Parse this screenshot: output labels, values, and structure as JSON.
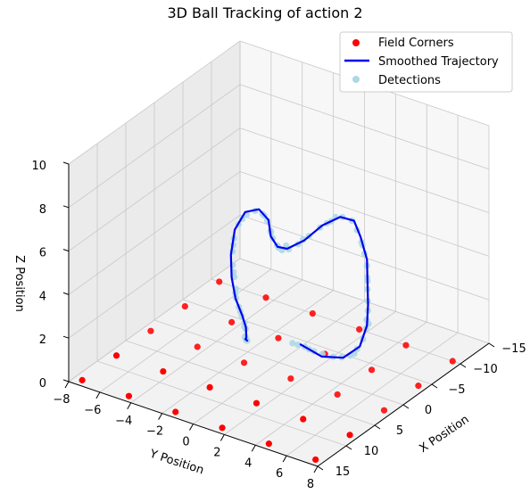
{
  "chart_data": {
    "type": "scatter",
    "title": "3D Ball Tracking of action 2",
    "xlabel": "X Position",
    "ylabel": "Y Position",
    "zlabel": "Z Position",
    "xlim": [
      -15,
      15
    ],
    "ylim": [
      -8,
      8
    ],
    "zlim": [
      0,
      10
    ],
    "x_ticks": [
      "15",
      "10",
      "5",
      "0",
      "−5",
      "−10",
      "−15"
    ],
    "y_ticks": [
      "−8",
      "−6",
      "−4",
      "−2",
      "0",
      "2",
      "4",
      "6",
      "8"
    ],
    "z_ticks": [
      "0",
      "2",
      "4",
      "6",
      "8",
      "10"
    ],
    "grid": true,
    "legend_position": "top-right",
    "legend": [
      "Field Corners",
      "Smoothed Trajectory",
      "Detections"
    ],
    "colors": {
      "field_corners": "#ff0000",
      "trajectory": "#0000ee",
      "detections": "#add8e6"
    },
    "series": [
      {
        "name": "Field Corners",
        "kind": "scatter",
        "points": [
          [
            14,
            -7.5,
            0
          ],
          [
            8,
            -7.5,
            0
          ],
          [
            2,
            -7.5,
            0
          ],
          [
            -4,
            -7.5,
            0
          ],
          [
            -10,
            -7.5,
            0
          ],
          [
            14,
            -4.5,
            0
          ],
          [
            8,
            -4.5,
            0
          ],
          [
            2,
            -4.5,
            0
          ],
          [
            -4,
            -4.5,
            0
          ],
          [
            -10,
            -4.5,
            0
          ],
          [
            14,
            -1.5,
            0
          ],
          [
            8,
            -1.5,
            0
          ],
          [
            2,
            -1.5,
            0
          ],
          [
            -4,
            -1.5,
            0
          ],
          [
            -10,
            -1.5,
            0
          ],
          [
            14,
            1.5,
            0
          ],
          [
            8,
            1.5,
            0
          ],
          [
            2,
            1.5,
            0
          ],
          [
            -4,
            1.5,
            0
          ],
          [
            -10,
            1.5,
            0
          ],
          [
            14,
            4.5,
            0
          ],
          [
            8,
            4.5,
            0
          ],
          [
            2,
            4.5,
            0
          ],
          [
            -4,
            4.5,
            0
          ],
          [
            -10,
            4.5,
            0
          ],
          [
            14,
            7.5,
            0
          ],
          [
            8,
            7.5,
            0
          ],
          [
            2,
            7.5,
            0
          ],
          [
            -4,
            7.5,
            0
          ],
          [
            -10,
            7.5,
            0
          ]
        ]
      },
      {
        "name": "Smoothed Trajectory",
        "kind": "line",
        "points": [
          [
            3,
            2.5,
            2.0
          ],
          [
            2,
            3.5,
            1.5
          ],
          [
            1,
            4.5,
            1.5
          ],
          [
            0,
            5.2,
            2.0
          ],
          [
            -1,
            5.3,
            2.8
          ],
          [
            -2,
            5.0,
            3.5
          ],
          [
            -3,
            4.6,
            4.2
          ],
          [
            -4,
            4.2,
            5.0
          ],
          [
            -4.5,
            3.6,
            5.8
          ],
          [
            -5,
            3.0,
            6.3
          ],
          [
            -4.5,
            2.3,
            6.4
          ],
          [
            -3.5,
            1.5,
            6.0
          ],
          [
            -2.5,
            0.7,
            5.3
          ],
          [
            -2,
            -0.2,
            4.8
          ],
          [
            -2.5,
            -1.0,
            4.6
          ],
          [
            -3.5,
            -1.8,
            4.7
          ],
          [
            -5,
            -2.5,
            5.0
          ],
          [
            -5.5,
            -3.3,
            5.2
          ],
          [
            -5,
            -4.0,
            5.0
          ],
          [
            -4,
            -4.3,
            4.3
          ],
          [
            -2.5,
            -4.0,
            3.5
          ],
          [
            -1,
            -3.4,
            2.9
          ],
          [
            0.5,
            -2.6,
            2.4
          ],
          [
            1.5,
            -1.8,
            2.0
          ],
          [
            2.5,
            -1.2,
            1.8
          ],
          [
            3.5,
            -0.8,
            1.6
          ],
          [
            4.5,
            -0.5,
            1.8
          ],
          [
            5,
            -0.2,
            1.9
          ]
        ]
      },
      {
        "name": "Detections",
        "kind": "scatter",
        "points": [
          [
            3.2,
            2.4,
            2.0
          ],
          [
            2.8,
            2.7,
            1.9
          ],
          [
            2.3,
            3.1,
            1.7
          ],
          [
            1.9,
            3.5,
            1.6
          ],
          [
            1.4,
            4.0,
            1.5
          ],
          [
            1.0,
            4.4,
            1.5
          ],
          [
            0.6,
            4.8,
            1.6
          ],
          [
            0.2,
            5.1,
            1.9
          ],
          [
            -0.3,
            5.3,
            2.3
          ],
          [
            -0.8,
            5.3,
            2.7
          ],
          [
            -1.2,
            5.2,
            3.0
          ],
          [
            -1.7,
            5.1,
            3.3
          ],
          [
            -2.2,
            4.9,
            3.6
          ],
          [
            -2.7,
            4.7,
            4.0
          ],
          [
            -3.2,
            4.5,
            4.4
          ],
          [
            -3.7,
            4.3,
            4.8
          ],
          [
            -4.1,
            4.0,
            5.2
          ],
          [
            -4.4,
            3.7,
            5.6
          ],
          [
            -4.7,
            3.3,
            6.0
          ],
          [
            -4.9,
            2.9,
            6.3
          ],
          [
            -4.6,
            2.4,
            6.4
          ],
          [
            -4.0,
            1.9,
            6.2
          ],
          [
            -3.4,
            1.4,
            5.9
          ],
          [
            -2.8,
            0.9,
            5.5
          ],
          [
            -2.3,
            0.4,
            5.1
          ],
          [
            -2.0,
            -0.1,
            4.8
          ],
          [
            -2.2,
            -0.6,
            4.6
          ],
          [
            -2.7,
            -1.1,
            4.6
          ],
          [
            -3.3,
            -1.6,
            4.7
          ],
          [
            -4.0,
            -2.0,
            4.8
          ],
          [
            -4.8,
            -2.5,
            5.0
          ],
          [
            -5.3,
            -3.0,
            5.1
          ],
          [
            -5.4,
            -3.5,
            5.1
          ],
          [
            -5.0,
            -3.9,
            4.9
          ],
          [
            -4.4,
            -4.2,
            4.5
          ],
          [
            -3.6,
            -4.2,
            4.0
          ],
          [
            -2.8,
            -4.0,
            3.6
          ],
          [
            -2.0,
            -3.7,
            3.2
          ],
          [
            -1.2,
            -3.3,
            2.9
          ],
          [
            -0.4,
            -2.9,
            2.6
          ],
          [
            0.4,
            -2.6,
            2.4
          ],
          [
            1.0,
            -2.2,
            2.2
          ],
          [
            1.6,
            -1.8,
            2.0
          ],
          [
            2.2,
            -1.4,
            1.9
          ],
          [
            2.8,
            -1.1,
            1.8
          ],
          [
            3.4,
            -0.9,
            1.6
          ],
          [
            4.0,
            -0.7,
            1.7
          ],
          [
            4.6,
            -0.4,
            1.8
          ],
          [
            5.0,
            -0.2,
            1.9
          ],
          [
            3.6,
            2.2,
            2.1
          ],
          [
            2.6,
            2.9,
            1.8
          ],
          [
            0.4,
            5.0,
            1.7
          ],
          [
            -1.0,
            5.4,
            2.9
          ],
          [
            -3.0,
            4.6,
            4.3
          ],
          [
            -4.3,
            3.8,
            5.5
          ],
          [
            -3.8,
            1.7,
            6.1
          ],
          [
            -2.6,
            0.6,
            5.3
          ],
          [
            -2.4,
            -0.9,
            4.6
          ],
          [
            -3.8,
            -1.9,
            4.8
          ],
          [
            -5.1,
            -2.8,
            5.1
          ],
          [
            -4.8,
            -4.1,
            4.7
          ],
          [
            -3.2,
            -4.1,
            3.8
          ],
          [
            -1.6,
            -3.5,
            3.0
          ],
          [
            0.0,
            -2.8,
            2.5
          ],
          [
            1.3,
            -2.0,
            2.1
          ],
          [
            2.5,
            -1.3,
            1.8
          ],
          [
            3.7,
            -0.8,
            1.7
          ],
          [
            4.3,
            -0.5,
            1.7
          ],
          [
            -4.2,
            2.1,
            6.4
          ],
          [
            -2.1,
            -0.3,
            4.9
          ]
        ]
      }
    ]
  }
}
